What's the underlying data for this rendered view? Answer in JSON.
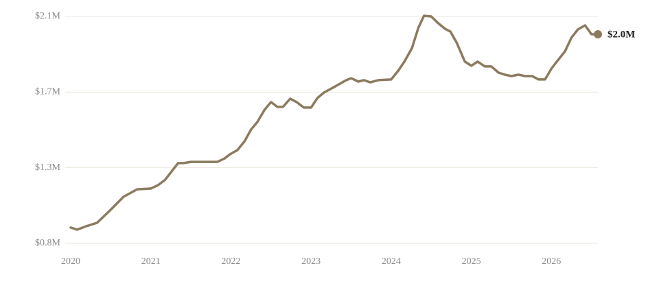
{
  "chart_data": {
    "type": "line",
    "x": [
      2020.0,
      2020.08,
      2020.19,
      2020.33,
      2020.49,
      2020.66,
      2020.83,
      2021.0,
      2021.09,
      2021.18,
      2021.34,
      2021.41,
      2021.5,
      2021.69,
      2021.83,
      2021.92,
      2021.99,
      2022.08,
      2022.17,
      2022.25,
      2022.33,
      2022.42,
      2022.5,
      2022.58,
      2022.65,
      2022.74,
      2022.82,
      2022.91,
      2023.0,
      2023.08,
      2023.16,
      2023.27,
      2023.44,
      2023.5,
      2023.59,
      2023.66,
      2023.74,
      2023.84,
      2024.0,
      2024.09,
      2024.17,
      2024.26,
      2024.34,
      2024.41,
      2024.5,
      2024.58,
      2024.67,
      2024.74,
      2024.82,
      2024.92,
      2025.0,
      2025.08,
      2025.17,
      2025.25,
      2025.34,
      2025.42,
      2025.5,
      2025.59,
      2025.67,
      2025.76,
      2025.84,
      2025.92,
      2026.0,
      2026.08,
      2026.17,
      2026.25,
      2026.33,
      2026.42,
      2026.5,
      2026.58
    ],
    "series": [
      {
        "color": "#8b7b5e",
        "values": [
          0.914,
          0.902,
          0.921,
          0.941,
          1.01,
          1.087,
          1.129,
          1.133,
          1.152,
          1.183,
          1.276,
          1.276,
          1.283,
          1.283,
          1.283,
          1.302,
          1.326,
          1.349,
          1.399,
          1.464,
          1.507,
          1.576,
          1.619,
          1.592,
          1.592,
          1.638,
          1.619,
          1.588,
          1.588,
          1.642,
          1.672,
          1.699,
          1.742,
          1.753,
          1.734,
          1.742,
          1.73,
          1.742,
          1.746,
          1.796,
          1.85,
          1.923,
          2.038,
          2.104,
          2.1,
          2.065,
          2.031,
          2.015,
          1.95,
          1.846,
          1.823,
          1.846,
          1.819,
          1.819,
          1.784,
          1.773,
          1.765,
          1.773,
          1.765,
          1.765,
          1.746,
          1.746,
          1.807,
          1.853,
          1.904,
          1.981,
          2.027,
          2.05,
          2.0,
          2.0
        ],
        "value_labels": [
          null,
          null,
          null,
          null,
          null,
          null,
          null,
          null,
          null,
          null,
          null,
          null,
          null,
          null,
          null,
          null,
          null,
          null,
          null,
          null,
          null,
          null,
          null,
          null,
          null,
          null,
          null,
          null,
          null,
          null,
          null,
          null,
          null,
          null,
          null,
          null,
          null,
          null,
          null,
          null,
          null,
          null,
          null,
          null,
          null,
          null,
          null,
          null,
          null,
          null,
          null,
          null,
          null,
          null,
          null,
          null,
          null,
          null,
          null,
          null,
          null,
          null,
          null,
          null,
          null,
          null,
          null,
          null,
          null,
          "$2.0M"
        ]
      }
    ],
    "xlim": [
      2020,
      2026.58
    ],
    "xticks": [
      2020,
      2021,
      2022,
      2023,
      2024,
      2025,
      2026
    ],
    "ylim": [
      0.825,
      2.1
    ],
    "yticks": [
      {
        "value": 0.825,
        "label": "$0.8M"
      },
      {
        "value": 1.25,
        "label": "$1.3M"
      },
      {
        "value": 1.675,
        "label": "$1.7M"
      },
      {
        "value": 2.1,
        "label": "$2.1M"
      }
    ],
    "grid": true
  }
}
